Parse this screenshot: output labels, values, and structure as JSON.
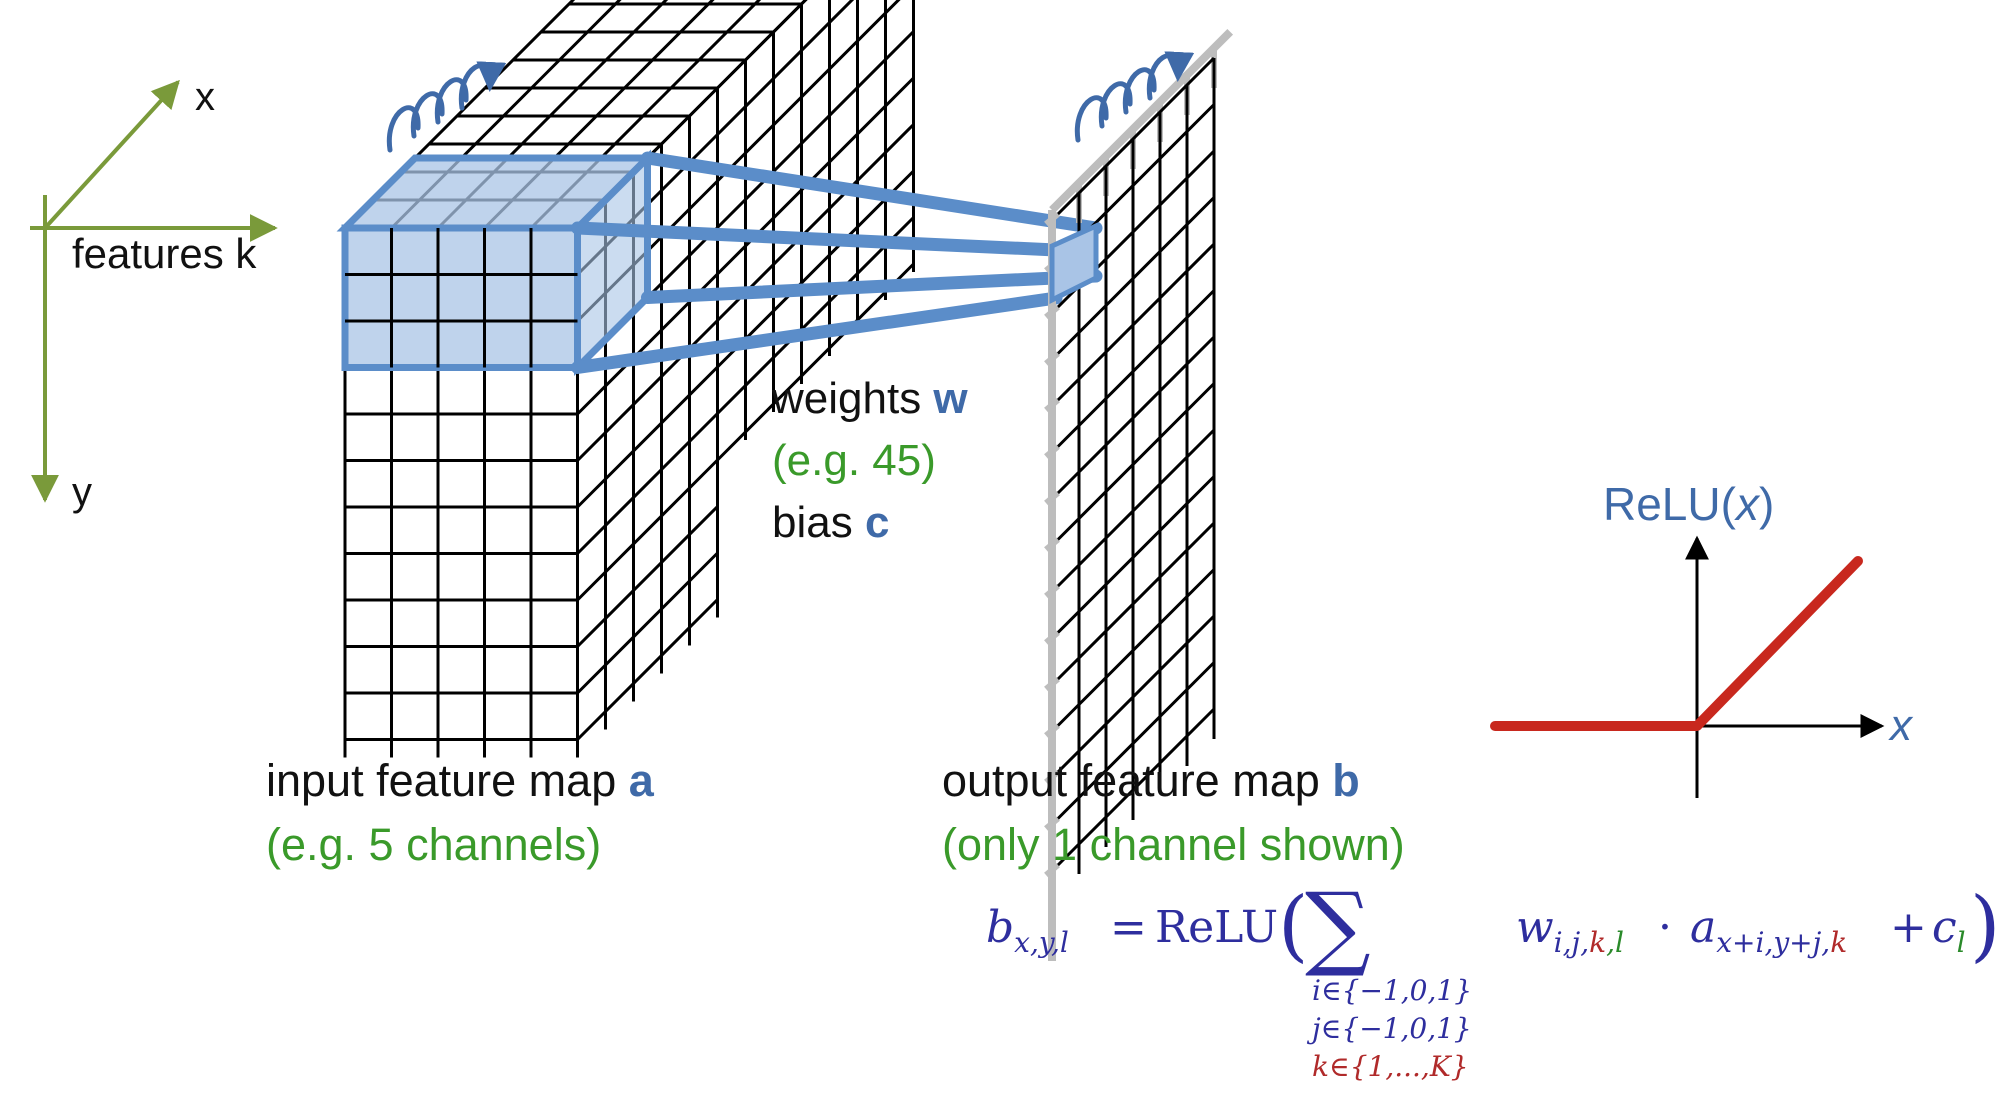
{
  "axes": {
    "x_label": "x",
    "k_label": "features k",
    "y_label": "y"
  },
  "weights": {
    "label": "weights",
    "symbol": "w",
    "example": "(e.g. 45)"
  },
  "bias": {
    "label": "bias",
    "symbol": "c"
  },
  "input_map": {
    "label": "input feature map",
    "symbol": "a",
    "note": "(e.g. 5 channels)"
  },
  "output_map": {
    "label": "output feature map",
    "symbol": "b",
    "note": "(only 1 channel shown)"
  },
  "relu": {
    "title_prefix": "ReLU(",
    "title_var": "x",
    "title_suffix": ")",
    "x_label": "x"
  },
  "formula": {
    "lhs_base": "b",
    "lhs_sub": "x,y,l",
    "equals": "=",
    "func": "ReLU",
    "open": "(",
    "sum": "∑",
    "w_base": "w",
    "w_sub_i": "i,j,",
    "w_sub_k": "k",
    "w_sub_l": ",l",
    "dot": "·",
    "a_base": "a",
    "a_sub_xy": "x+i,y+j,",
    "a_sub_k": "k",
    "plus": "+",
    "c_base": "c",
    "c_sub": "l",
    "close": ")",
    "limit_i": "i∈{−1,0,1}",
    "limit_j": "j∈{−1,0,1}",
    "limit_k": "k∈{1,...,K}"
  },
  "colors": {
    "axis_green": "#7a9a3a",
    "highlight_blue": "#5b8dc9",
    "highlight_fill": "#a9c4e6",
    "label_blue": "#3f6aa8",
    "note_green": "#3a9a2a",
    "relu_red": "#c8281e",
    "formula_blue": "#2e2e9e",
    "formula_red": "#b02a2a",
    "formula_green": "#2a8a2a",
    "grid_black": "#000000",
    "grid_gray": "#bdbdbd"
  }
}
